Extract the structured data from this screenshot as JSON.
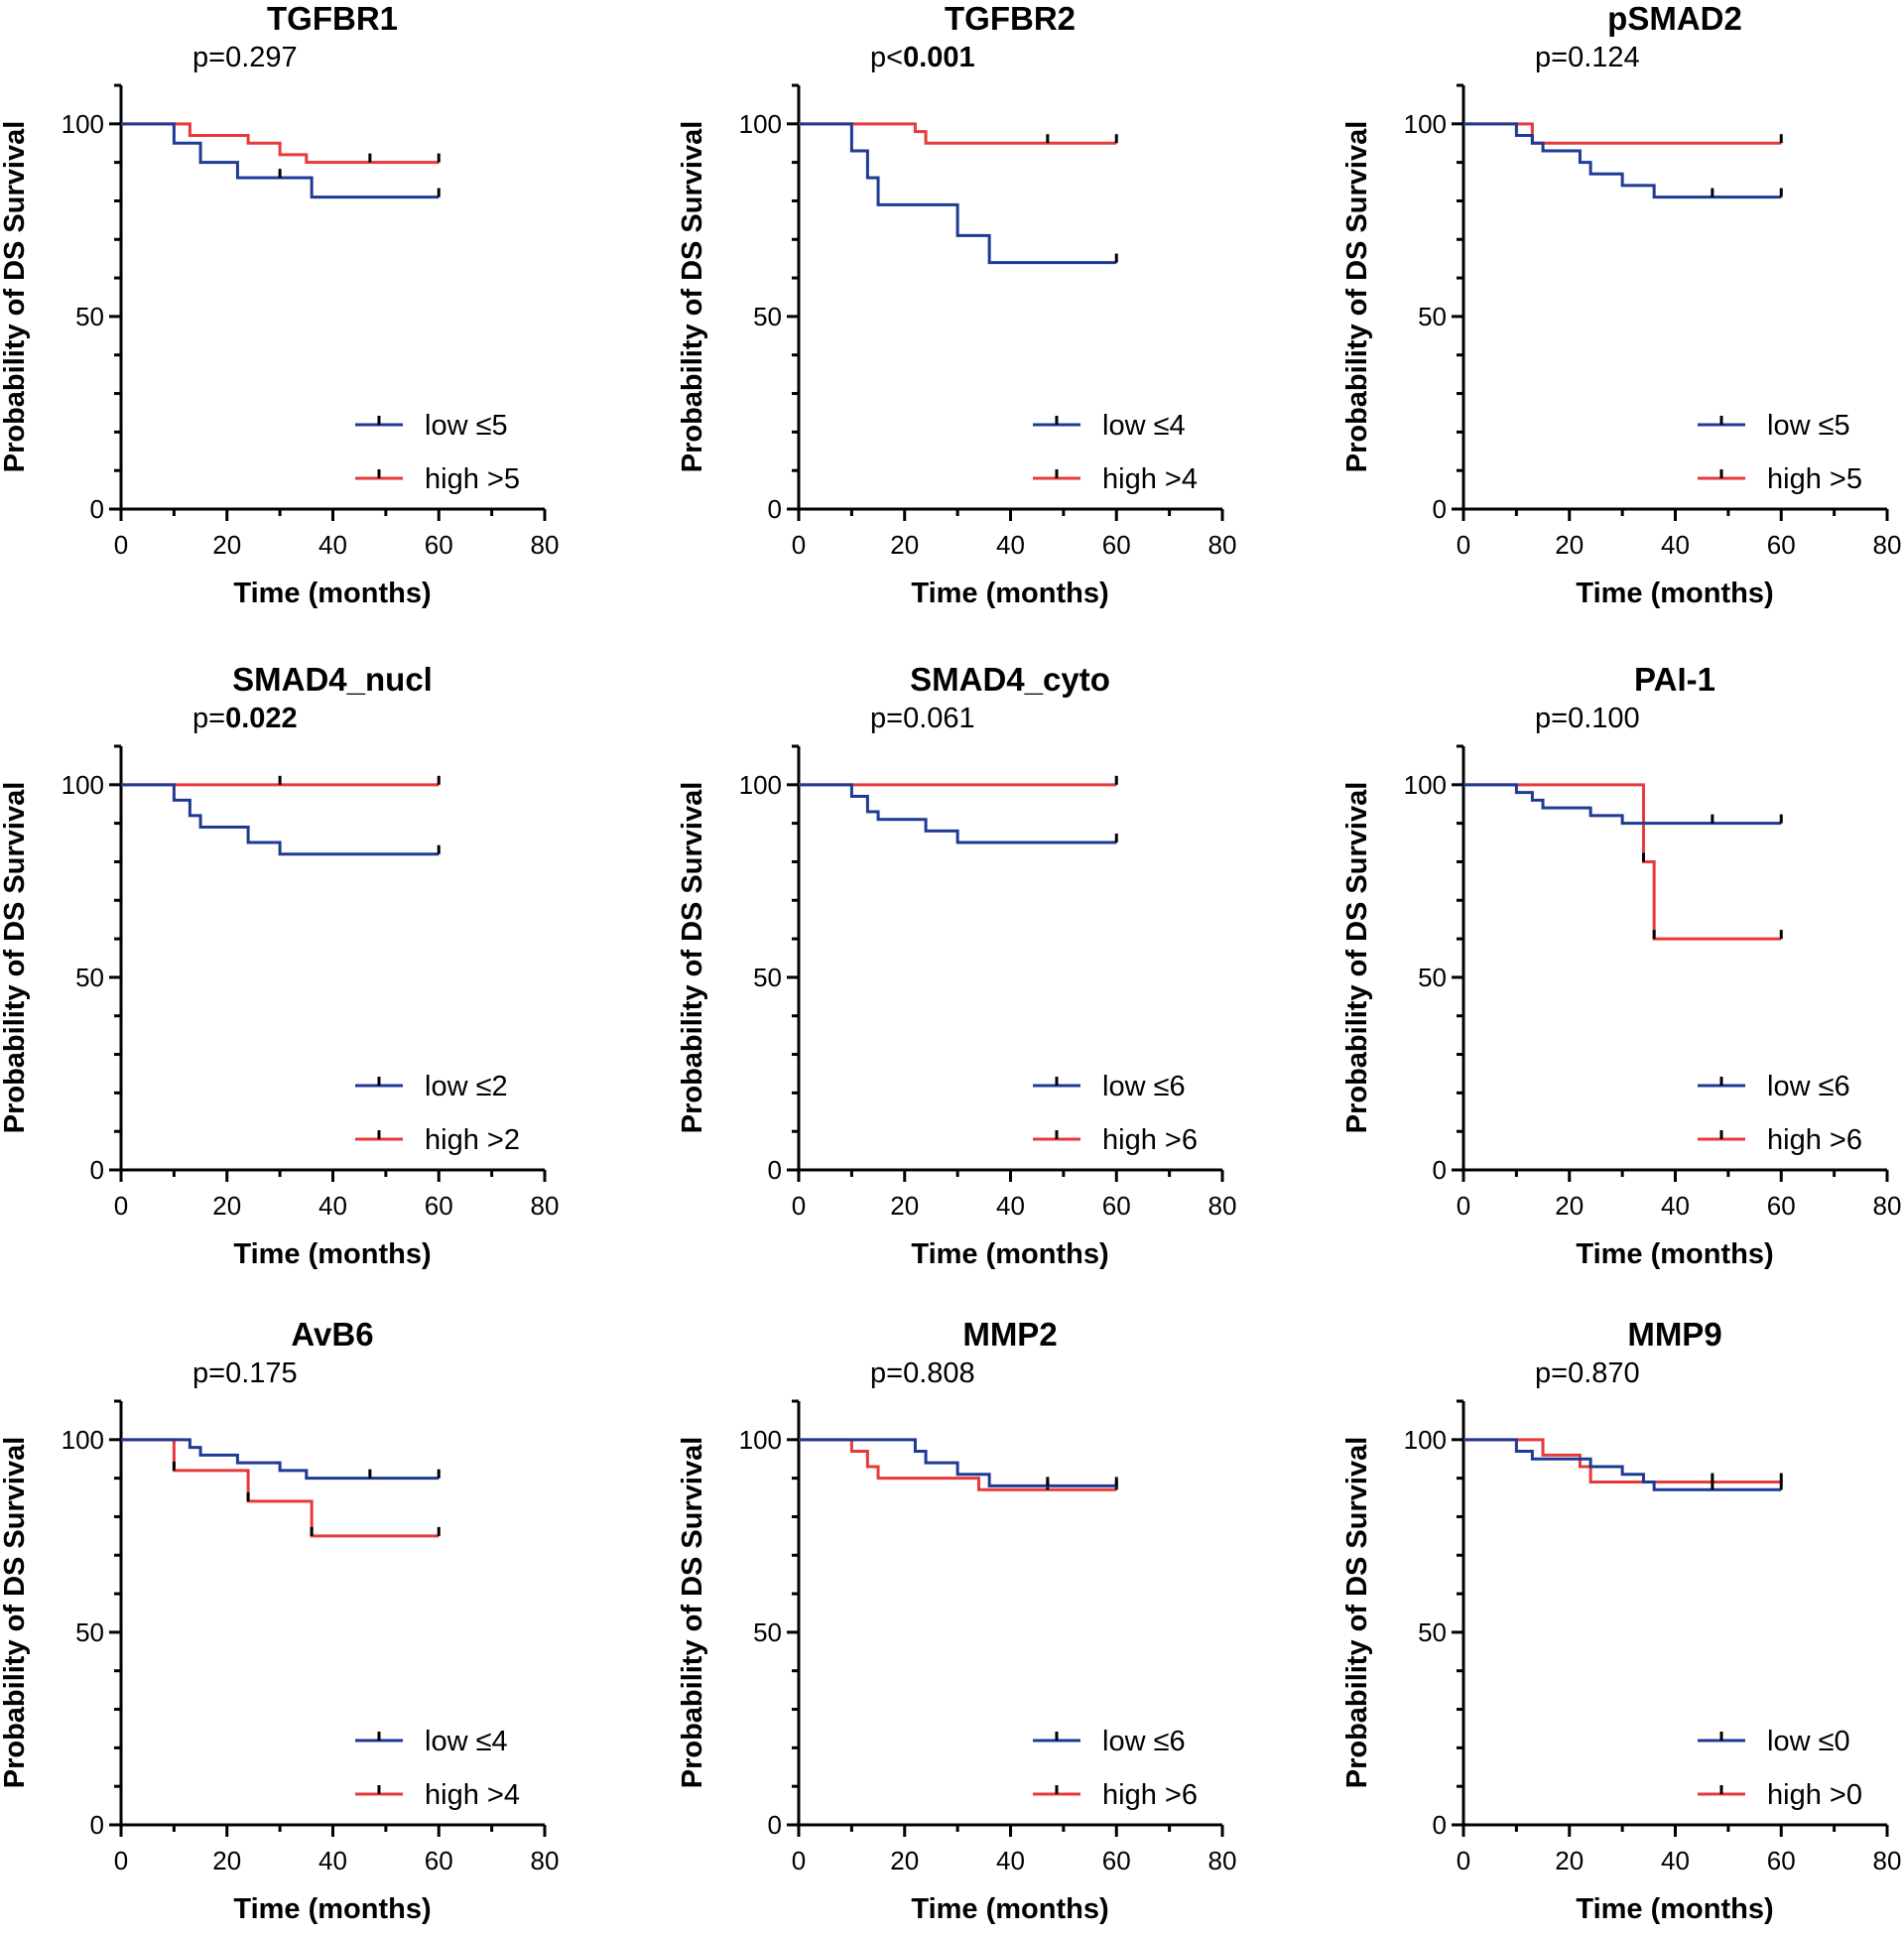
{
  "colors": {
    "low": "#1f3a93",
    "high": "#e8393a",
    "axis": "#000000"
  },
  "chart_data": [
    {
      "type": "line",
      "title": "TGFBR1",
      "p_prefix": "p=",
      "p_value": "0.297",
      "p_bold": false,
      "xlabel": "Time (months)",
      "ylabel": "Probability of DS Survival",
      "xlim": [
        0,
        80
      ],
      "ylim": [
        0,
        110
      ],
      "xticks": [
        0,
        20,
        40,
        60,
        80
      ],
      "yticks": [
        0,
        50,
        100
      ],
      "legend_position": "bottom-right",
      "series": [
        {
          "name": "low ≤5",
          "group": "low",
          "steps": [
            [
              0,
              100
            ],
            [
              10,
              95
            ],
            [
              15,
              90
            ],
            [
              22,
              86
            ],
            [
              36,
              81
            ],
            [
              60,
              81
            ]
          ],
          "censored": [
            [
              30,
              86
            ],
            [
              60,
              81
            ]
          ]
        },
        {
          "name": "high >5",
          "group": "high",
          "steps": [
            [
              0,
              100
            ],
            [
              13,
              97
            ],
            [
              24,
              95
            ],
            [
              30,
              92
            ],
            [
              35,
              90
            ],
            [
              60,
              90
            ]
          ],
          "censored": [
            [
              47,
              90
            ],
            [
              60,
              90
            ]
          ]
        }
      ]
    },
    {
      "type": "line",
      "title": "TGFBR2",
      "p_prefix": "p<",
      "p_value": "0.001",
      "p_bold": true,
      "xlabel": "Time (months)",
      "ylabel": "Probability of DS Survival",
      "xlim": [
        0,
        80
      ],
      "ylim": [
        0,
        110
      ],
      "xticks": [
        0,
        20,
        40,
        60,
        80
      ],
      "yticks": [
        0,
        50,
        100
      ],
      "legend_position": "bottom-right",
      "series": [
        {
          "name": "low ≤4",
          "group": "low",
          "steps": [
            [
              0,
              100
            ],
            [
              10,
              93
            ],
            [
              13,
              86
            ],
            [
              15,
              79
            ],
            [
              30,
              71
            ],
            [
              36,
              64
            ],
            [
              60,
              64
            ]
          ],
          "censored": [
            [
              60,
              64
            ]
          ]
        },
        {
          "name": "high >4",
          "group": "high",
          "steps": [
            [
              0,
              100
            ],
            [
              22,
              98
            ],
            [
              24,
              95
            ],
            [
              60,
              95
            ]
          ],
          "censored": [
            [
              47,
              95
            ],
            [
              60,
              95
            ]
          ]
        }
      ]
    },
    {
      "type": "line",
      "title": "pSMAD2",
      "p_prefix": "p=",
      "p_value": "0.124",
      "p_bold": false,
      "xlabel": "Time (months)",
      "ylabel": "Probability of DS Survival",
      "xlim": [
        0,
        80
      ],
      "ylim": [
        0,
        110
      ],
      "xticks": [
        0,
        20,
        40,
        60,
        80
      ],
      "yticks": [
        0,
        50,
        100
      ],
      "legend_position": "bottom-right",
      "series": [
        {
          "name": "low ≤5",
          "group": "low",
          "steps": [
            [
              0,
              100
            ],
            [
              10,
              97
            ],
            [
              13,
              95
            ],
            [
              15,
              93
            ],
            [
              22,
              90
            ],
            [
              24,
              87
            ],
            [
              30,
              84
            ],
            [
              36,
              81
            ],
            [
              60,
              81
            ]
          ],
          "censored": [
            [
              47,
              81
            ],
            [
              60,
              81
            ]
          ]
        },
        {
          "name": "high >5",
          "group": "high",
          "steps": [
            [
              0,
              100
            ],
            [
              13,
              95
            ],
            [
              60,
              95
            ]
          ],
          "censored": [
            [
              60,
              95
            ]
          ]
        }
      ]
    },
    {
      "type": "line",
      "title": "SMAD4_nucl",
      "p_prefix": "p=",
      "p_value": "0.022",
      "p_bold": true,
      "xlabel": "Time (months)",
      "ylabel": "Probability of DS Survival",
      "xlim": [
        0,
        80
      ],
      "ylim": [
        0,
        110
      ],
      "xticks": [
        0,
        20,
        40,
        60,
        80
      ],
      "yticks": [
        0,
        50,
        100
      ],
      "legend_position": "bottom-right",
      "series": [
        {
          "name": "low ≤2",
          "group": "low",
          "steps": [
            [
              0,
              100
            ],
            [
              10,
              96
            ],
            [
              13,
              92
            ],
            [
              15,
              89
            ],
            [
              24,
              85
            ],
            [
              30,
              82
            ],
            [
              60,
              82
            ]
          ],
          "censored": [
            [
              60,
              82
            ]
          ]
        },
        {
          "name": "high >2",
          "group": "high",
          "steps": [
            [
              0,
              100
            ],
            [
              60,
              100
            ]
          ],
          "censored": [
            [
              30,
              100
            ],
            [
              60,
              100
            ]
          ]
        }
      ]
    },
    {
      "type": "line",
      "title": "SMAD4_cyto",
      "p_prefix": "p=",
      "p_value": "0.061",
      "p_bold": false,
      "xlabel": "Time (months)",
      "ylabel": "Probability of DS Survival",
      "xlim": [
        0,
        80
      ],
      "ylim": [
        0,
        110
      ],
      "xticks": [
        0,
        20,
        40,
        60,
        80
      ],
      "yticks": [
        0,
        50,
        100
      ],
      "legend_position": "bottom-right",
      "series": [
        {
          "name": "low ≤6",
          "group": "low",
          "steps": [
            [
              0,
              100
            ],
            [
              10,
              97
            ],
            [
              13,
              93
            ],
            [
              15,
              91
            ],
            [
              24,
              88
            ],
            [
              30,
              85
            ],
            [
              60,
              85
            ]
          ],
          "censored": [
            [
              60,
              85
            ]
          ]
        },
        {
          "name": "high >6",
          "group": "high",
          "steps": [
            [
              0,
              100
            ],
            [
              60,
              100
            ]
          ],
          "censored": [
            [
              60,
              100
            ]
          ]
        }
      ]
    },
    {
      "type": "line",
      "title": "PAI-1",
      "p_prefix": "p=",
      "p_value": "0.100",
      "p_bold": false,
      "xlabel": "Time (months)",
      "ylabel": "Probability of DS Survival",
      "xlim": [
        0,
        80
      ],
      "ylim": [
        0,
        110
      ],
      "xticks": [
        0,
        20,
        40,
        60,
        80
      ],
      "yticks": [
        0,
        50,
        100
      ],
      "legend_position": "bottom-right",
      "series": [
        {
          "name": "low ≤6",
          "group": "low",
          "steps": [
            [
              0,
              100
            ],
            [
              10,
              98
            ],
            [
              13,
              96
            ],
            [
              15,
              94
            ],
            [
              24,
              92
            ],
            [
              30,
              90
            ],
            [
              60,
              90
            ]
          ],
          "censored": [
            [
              47,
              90
            ],
            [
              60,
              90
            ]
          ]
        },
        {
          "name": "high >6",
          "group": "high",
          "steps": [
            [
              0,
              100
            ],
            [
              34,
              80
            ],
            [
              36,
              60
            ],
            [
              60,
              60
            ]
          ],
          "censored": [
            [
              34,
              80
            ],
            [
              36,
              60
            ],
            [
              60,
              60
            ]
          ]
        }
      ]
    },
    {
      "type": "line",
      "title": "AvB6",
      "p_prefix": "p=",
      "p_value": "0.175",
      "p_bold": false,
      "xlabel": "Time (months)",
      "ylabel": "Probability of DS Survival",
      "xlim": [
        0,
        80
      ],
      "ylim": [
        0,
        110
      ],
      "xticks": [
        0,
        20,
        40,
        60,
        80
      ],
      "yticks": [
        0,
        50,
        100
      ],
      "legend_position": "bottom-right",
      "series": [
        {
          "name": "low ≤4",
          "group": "low",
          "steps": [
            [
              0,
              100
            ],
            [
              13,
              98
            ],
            [
              15,
              96
            ],
            [
              22,
              94
            ],
            [
              30,
              92
            ],
            [
              35,
              90
            ],
            [
              60,
              90
            ]
          ],
          "censored": [
            [
              47,
              90
            ],
            [
              60,
              90
            ]
          ]
        },
        {
          "name": "high >4",
          "group": "high",
          "steps": [
            [
              0,
              100
            ],
            [
              10,
              92
            ],
            [
              24,
              84
            ],
            [
              36,
              75
            ],
            [
              60,
              75
            ]
          ],
          "censored": [
            [
              10,
              92
            ],
            [
              24,
              84
            ],
            [
              36,
              75
            ],
            [
              60,
              75
            ]
          ]
        }
      ]
    },
    {
      "type": "line",
      "title": "MMP2",
      "p_prefix": "p=",
      "p_value": "0.808",
      "p_bold": false,
      "xlabel": "Time (months)",
      "ylabel": "Probability of DS Survival",
      "xlim": [
        0,
        80
      ],
      "ylim": [
        0,
        110
      ],
      "xticks": [
        0,
        20,
        40,
        60,
        80
      ],
      "yticks": [
        0,
        50,
        100
      ],
      "legend_position": "bottom-right",
      "series": [
        {
          "name": "low ≤6",
          "group": "low",
          "steps": [
            [
              0,
              100
            ],
            [
              22,
              97
            ],
            [
              24,
              94
            ],
            [
              30,
              91
            ],
            [
              36,
              88
            ],
            [
              60,
              88
            ]
          ],
          "censored": [
            [
              47,
              88
            ],
            [
              60,
              88
            ]
          ]
        },
        {
          "name": "high >6",
          "group": "high",
          "steps": [
            [
              0,
              100
            ],
            [
              10,
              97
            ],
            [
              13,
              93
            ],
            [
              15,
              90
            ],
            [
              34,
              87
            ],
            [
              60,
              87
            ]
          ],
          "censored": [
            [
              47,
              87
            ],
            [
              60,
              87
            ]
          ]
        }
      ]
    },
    {
      "type": "line",
      "title": "MMP9",
      "p_prefix": "p=",
      "p_value": "0.870",
      "p_bold": false,
      "xlabel": "Time (months)",
      "ylabel": "Probability of DS Survival",
      "xlim": [
        0,
        80
      ],
      "ylim": [
        0,
        110
      ],
      "xticks": [
        0,
        20,
        40,
        60,
        80
      ],
      "yticks": [
        0,
        50,
        100
      ],
      "legend_position": "bottom-right",
      "series": [
        {
          "name": "low ≤0",
          "group": "low",
          "steps": [
            [
              0,
              100
            ],
            [
              10,
              97
            ],
            [
              13,
              95
            ],
            [
              24,
              93
            ],
            [
              30,
              91
            ],
            [
              34,
              89
            ],
            [
              36,
              87
            ],
            [
              60,
              87
            ]
          ],
          "censored": [
            [
              47,
              87
            ],
            [
              60,
              87
            ]
          ]
        },
        {
          "name": "high >0",
          "group": "high",
          "steps": [
            [
              0,
              100
            ],
            [
              15,
              96
            ],
            [
              22,
              93
            ],
            [
              24,
              89
            ],
            [
              60,
              89
            ]
          ],
          "censored": [
            [
              47,
              89
            ],
            [
              60,
              89
            ]
          ]
        }
      ]
    }
  ]
}
